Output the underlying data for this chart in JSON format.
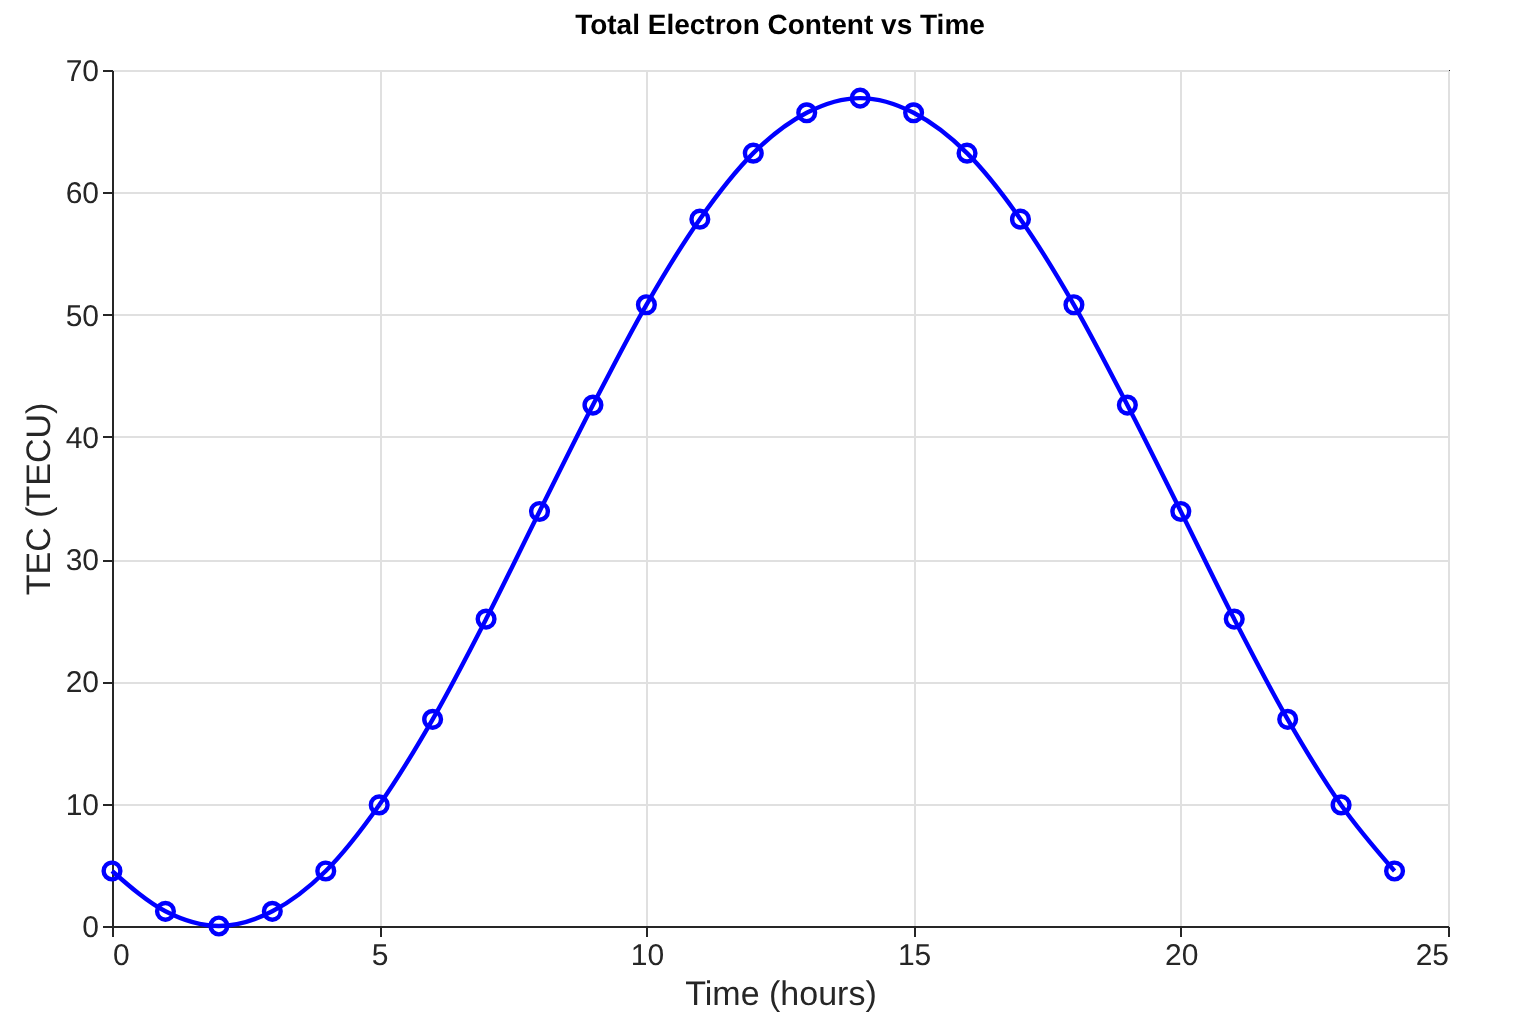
{
  "chart_data": {
    "type": "line",
    "title": "Total Electron Content vs Time",
    "xlabel": "Time (hours)",
    "ylabel": "TEC (TECU)",
    "x": [
      0,
      1,
      2,
      3,
      4,
      5,
      6,
      7,
      8,
      9,
      10,
      11,
      12,
      13,
      14,
      15,
      16,
      17,
      18,
      19,
      20,
      21,
      22,
      23,
      24
    ],
    "series": [
      {
        "color": "#0000ff",
        "values": [
          4.5,
          1.2,
          0,
          1.2,
          4.5,
          9.9,
          16.9,
          25.1,
          33.9,
          42.6,
          50.8,
          57.8,
          63.2,
          66.5,
          67.7,
          66.5,
          63.2,
          57.8,
          50.8,
          42.6,
          33.9,
          25.1,
          16.9,
          9.9,
          4.5
        ]
      }
    ],
    "xlim": [
      0,
      25
    ],
    "xticks": [
      0,
      5,
      10,
      15,
      20,
      25
    ],
    "ylim": [
      0,
      70
    ],
    "yticks": [
      0,
      10,
      20,
      30,
      40,
      50,
      60,
      70
    ],
    "grid": true,
    "marker": "circle",
    "line_style": "solid"
  }
}
